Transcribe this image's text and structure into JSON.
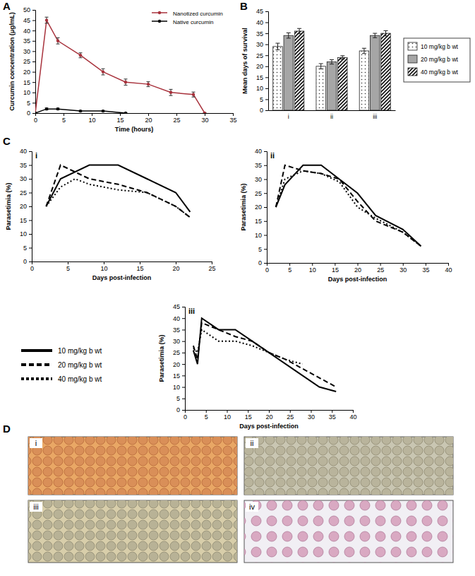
{
  "figure": {
    "panels": [
      "A",
      "B",
      "C",
      "D"
    ],
    "micrograph_labels": [
      "i",
      "ii",
      "iii",
      "iv"
    ]
  },
  "chart_data": [
    {
      "type": "line",
      "x_label": "Time (hours)",
      "y_label": "Curcumin concentration (μg/mL)",
      "xlim": [
        0,
        35
      ],
      "xticks": [
        0,
        5,
        10,
        15,
        20,
        25,
        30,
        35
      ],
      "ylim": [
        0,
        50
      ],
      "yticks": [
        0,
        5,
        10,
        15,
        20,
        25,
        30,
        35,
        40,
        45,
        50
      ],
      "legend": "upper right",
      "marker": "circle",
      "series": [
        {
          "name": "Nanotized curcumin",
          "color": "#a8323c",
          "x": [
            0,
            2,
            4,
            8,
            12,
            16,
            20,
            24,
            28,
            30
          ],
          "values": [
            0,
            45,
            35,
            28,
            20,
            15,
            14,
            10,
            9,
            0
          ],
          "errors": [
            0,
            1.5,
            1.5,
            1.2,
            1.5,
            1.5,
            1.2,
            1.5,
            1.2,
            0
          ]
        },
        {
          "name": "Native curcumin",
          "color": "#000000",
          "x": [
            0,
            2,
            4,
            8,
            12,
            16
          ],
          "values": [
            0,
            2,
            2,
            1,
            1,
            0
          ],
          "errors": [
            0,
            0.5,
            0.4,
            0.3,
            0.3,
            0
          ]
        }
      ]
    },
    {
      "type": "bar",
      "y_label": "Mean days of survival",
      "categories": [
        "i",
        "ii",
        "iii"
      ],
      "ylim": [
        0,
        45
      ],
      "yticks": [
        0,
        5,
        10,
        15,
        20,
        25,
        30,
        35,
        40,
        45
      ],
      "legend": "right",
      "series": [
        {
          "name": "10 mg/kg b wt",
          "color": "#ffffff",
          "values": [
            29,
            20,
            27
          ],
          "errors": [
            1.5,
            1.2,
            1.2
          ]
        },
        {
          "name": "20 mg/kg b wt",
          "color": "#a6a6a6",
          "values": [
            34,
            22,
            34
          ],
          "errors": [
            1.2,
            1,
            1
          ]
        },
        {
          "name": "40 mg/kg b wt",
          "color": "#ffffff",
          "values": [
            36,
            24,
            35
          ],
          "errors": [
            1.2,
            0.8,
            1.2
          ]
        }
      ]
    },
    {
      "type": "line",
      "title": "i",
      "x_label": "Days post-infection",
      "y_label": "Parasetimia (%)",
      "xlim": [
        0,
        25
      ],
      "xticks": [
        0,
        5,
        10,
        15,
        20,
        25
      ],
      "ylim": [
        0,
        40
      ],
      "yticks": [
        0,
        5,
        10,
        15,
        20,
        25,
        30,
        35,
        40
      ],
      "series": [
        {
          "name": "10 mg/kg b wt",
          "color": "#000000",
          "line_style": "solid",
          "x": [
            2,
            4,
            8,
            12,
            16,
            20,
            22
          ],
          "values": [
            20,
            30,
            35,
            35,
            30,
            25,
            18
          ]
        },
        {
          "name": "20 mg/kg b wt",
          "color": "#000000",
          "line_style": "dashed",
          "x": [
            2,
            4,
            8,
            12,
            16,
            20,
            22
          ],
          "values": [
            20,
            35,
            30,
            28,
            25,
            20,
            16
          ]
        },
        {
          "name": "40 mg/kg b wt",
          "color": "#000000",
          "line_style": "dotted",
          "x": [
            2,
            4,
            6,
            8,
            12,
            16,
            20,
            22
          ],
          "values": [
            20,
            27,
            30,
            28,
            26,
            25,
            20,
            16
          ]
        }
      ]
    },
    {
      "type": "line",
      "title": "ii",
      "x_label": "Days post-infection",
      "y_label": "Parasetimia (%)",
      "xlim": [
        0,
        40
      ],
      "xticks": [
        0,
        5,
        10,
        15,
        20,
        25,
        30,
        35,
        40
      ],
      "ylim": [
        0,
        40
      ],
      "yticks": [
        0,
        5,
        10,
        15,
        20,
        25,
        30,
        35,
        40
      ],
      "series": [
        {
          "name": "10 mg/kg b wt",
          "color": "#000000",
          "line_style": "solid",
          "x": [
            2,
            4,
            8,
            12,
            16,
            20,
            24,
            30,
            34
          ],
          "values": [
            20,
            28,
            35,
            35,
            30,
            25,
            17,
            12,
            6
          ]
        },
        {
          "name": "20 mg/kg b wt",
          "color": "#000000",
          "line_style": "dashed",
          "x": [
            2,
            4,
            8,
            12,
            16,
            20,
            24,
            30,
            34
          ],
          "values": [
            20,
            35,
            33,
            32,
            30,
            22,
            15,
            11,
            6
          ]
        },
        {
          "name": "40 mg/kg b wt",
          "color": "#000000",
          "line_style": "dotted",
          "x": [
            2,
            4,
            8,
            12,
            16,
            20,
            24,
            30,
            34
          ],
          "values": [
            20,
            30,
            33,
            32,
            29,
            20,
            16,
            11,
            6
          ]
        }
      ]
    },
    {
      "type": "line",
      "title": "iii",
      "x_label": "Days post-infection",
      "y_label": "Parasetimia (%)",
      "xlim": [
        0,
        40
      ],
      "xticks": [
        0,
        5,
        10,
        15,
        20,
        25,
        30,
        35,
        40
      ],
      "ylim": [
        0,
        45
      ],
      "yticks": [
        0,
        5,
        10,
        15,
        20,
        25,
        30,
        35,
        40,
        45
      ],
      "legend": "left",
      "series": [
        {
          "name": "10 mg/kg b wt",
          "color": "#000000",
          "line_style": "solid",
          "x": [
            2,
            3,
            4,
            8,
            12,
            16,
            20,
            24,
            28,
            32,
            36
          ],
          "values": [
            26,
            20,
            40,
            35,
            35,
            30,
            25,
            20,
            15,
            10,
            8
          ]
        },
        {
          "name": "20 mg/kg b wt",
          "color": "#000000",
          "line_style": "dashed",
          "x": [
            2,
            3,
            4,
            8,
            12,
            16,
            20,
            24,
            28,
            32,
            36
          ],
          "values": [
            28,
            22,
            38,
            35,
            32,
            30,
            25,
            22,
            18,
            14,
            10
          ]
        },
        {
          "name": "40 mg/kg b wt",
          "color": "#000000",
          "line_style": "dotted",
          "x": [
            2,
            3,
            4,
            8,
            12,
            16,
            20,
            24,
            28
          ],
          "values": [
            27,
            25,
            35,
            30,
            30,
            28,
            25,
            22,
            20
          ]
        }
      ]
    }
  ]
}
